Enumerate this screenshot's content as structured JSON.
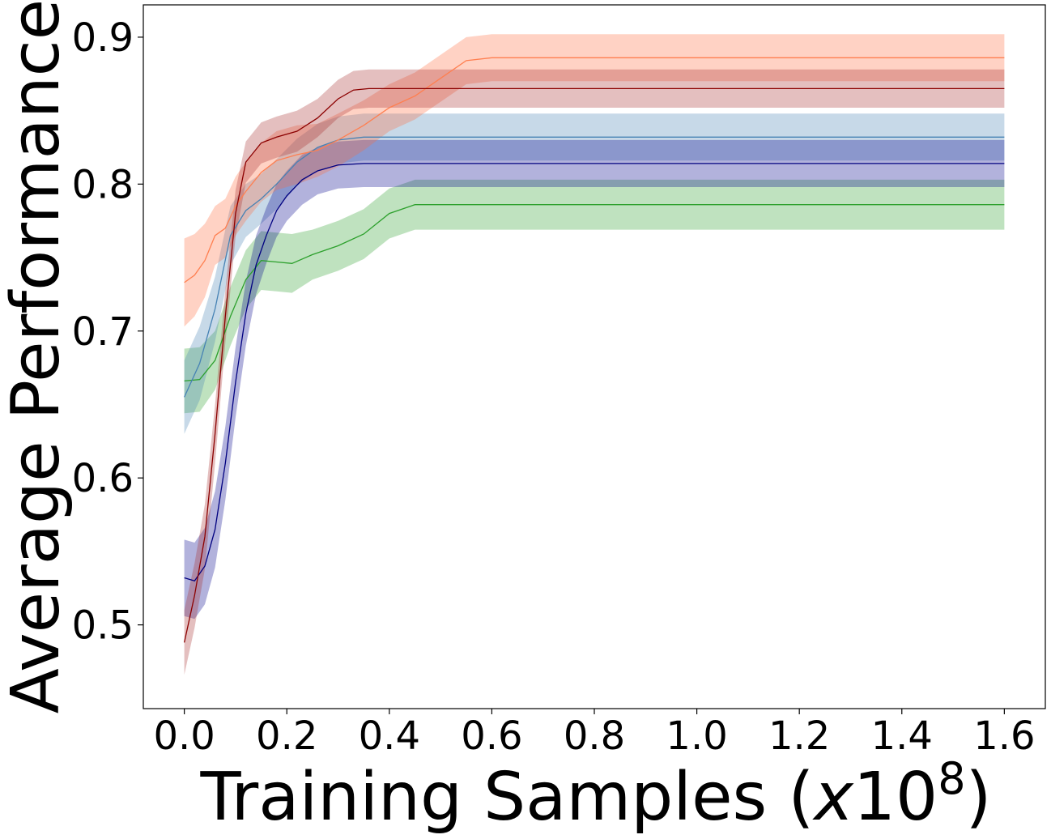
{
  "chart_data": {
    "type": "line",
    "xlabel": "Training Samples (",
    "xlabel_var": "x",
    "xlabel_base": "10",
    "xlabel_exp": "8",
    "xlabel_close": ")",
    "ylabel": "Average Performance",
    "xlim": [
      -0.08,
      1.68
    ],
    "ylim": [
      0.443,
      0.922
    ],
    "xticks": [
      0.0,
      0.2,
      0.4,
      0.6,
      0.8,
      1.0,
      1.2,
      1.4,
      1.6
    ],
    "xtick_labels": [
      "0.0",
      "0.2",
      "0.4",
      "0.6",
      "0.8",
      "1.0",
      "1.2",
      "1.4",
      "1.6"
    ],
    "yticks": [
      0.5,
      0.6,
      0.7,
      0.8,
      0.9
    ],
    "ytick_labels": [
      "0.5",
      "0.6",
      "0.7",
      "0.8",
      "0.9"
    ],
    "grid": false,
    "series": [
      {
        "color": "#2ca02c",
        "fill": "#2ca02c",
        "x": [
          0.0,
          0.03,
          0.06,
          0.09,
          0.12,
          0.15,
          0.18,
          0.21,
          0.25,
          0.3,
          0.35,
          0.4,
          0.45,
          0.5,
          1.6
        ],
        "y": [
          0.666,
          0.667,
          0.68,
          0.71,
          0.735,
          0.748,
          0.747,
          0.746,
          0.752,
          0.758,
          0.766,
          0.78,
          0.786,
          0.786,
          0.786
        ],
        "band": [
          0.022,
          0.022,
          0.02,
          0.02,
          0.02,
          0.02,
          0.02,
          0.02,
          0.017,
          0.017,
          0.017,
          0.017,
          0.017,
          0.017,
          0.017
        ]
      },
      {
        "color": "#4682b4",
        "fill": "#4682b4",
        "x": [
          0.0,
          0.03,
          0.06,
          0.09,
          0.12,
          0.15,
          0.18,
          0.22,
          0.26,
          0.3,
          0.35,
          1.6
        ],
        "y": [
          0.655,
          0.678,
          0.715,
          0.765,
          0.782,
          0.79,
          0.8,
          0.815,
          0.825,
          0.83,
          0.832,
          0.832
        ],
        "band": [
          0.025,
          0.025,
          0.022,
          0.02,
          0.018,
          0.017,
          0.017,
          0.016,
          0.016,
          0.016,
          0.016,
          0.016
        ]
      },
      {
        "color": "#000080",
        "fill": "#00008b",
        "x": [
          0.0,
          0.02,
          0.04,
          0.06,
          0.08,
          0.1,
          0.12,
          0.14,
          0.16,
          0.18,
          0.2,
          0.23,
          0.26,
          0.3,
          0.35,
          1.6
        ],
        "y": [
          0.532,
          0.53,
          0.54,
          0.565,
          0.61,
          0.665,
          0.712,
          0.745,
          0.765,
          0.782,
          0.792,
          0.803,
          0.809,
          0.813,
          0.814,
          0.814
        ],
        "band": [
          0.026,
          0.026,
          0.026,
          0.026,
          0.025,
          0.024,
          0.022,
          0.02,
          0.019,
          0.018,
          0.017,
          0.017,
          0.016,
          0.016,
          0.016,
          0.016
        ]
      },
      {
        "color": "#ff7f50",
        "fill": "#ff6a3d",
        "x": [
          0.0,
          0.02,
          0.04,
          0.06,
          0.08,
          0.1,
          0.12,
          0.15,
          0.18,
          0.22,
          0.26,
          0.3,
          0.35,
          0.4,
          0.45,
          0.5,
          0.55,
          0.6,
          1.6
        ],
        "y": [
          0.733,
          0.738,
          0.748,
          0.765,
          0.77,
          0.785,
          0.795,
          0.808,
          0.816,
          0.82,
          0.823,
          0.83,
          0.84,
          0.852,
          0.86,
          0.872,
          0.884,
          0.886,
          0.886
        ],
        "band": [
          0.03,
          0.028,
          0.025,
          0.02,
          0.02,
          0.02,
          0.02,
          0.02,
          0.02,
          0.02,
          0.018,
          0.018,
          0.017,
          0.016,
          0.016,
          0.016,
          0.016,
          0.016,
          0.016
        ]
      },
      {
        "color": "#8b0000",
        "fill": "#a52a2a",
        "x": [
          0.0,
          0.02,
          0.04,
          0.06,
          0.08,
          0.1,
          0.12,
          0.15,
          0.18,
          0.22,
          0.26,
          0.3,
          0.33,
          0.36,
          1.6
        ],
        "y": [
          0.488,
          0.52,
          0.56,
          0.63,
          0.71,
          0.78,
          0.815,
          0.828,
          0.832,
          0.836,
          0.845,
          0.858,
          0.864,
          0.865,
          0.865
        ],
        "band": [
          0.022,
          0.022,
          0.022,
          0.02,
          0.018,
          0.016,
          0.014,
          0.014,
          0.014,
          0.014,
          0.013,
          0.013,
          0.013,
          0.013,
          0.013
        ]
      }
    ]
  }
}
